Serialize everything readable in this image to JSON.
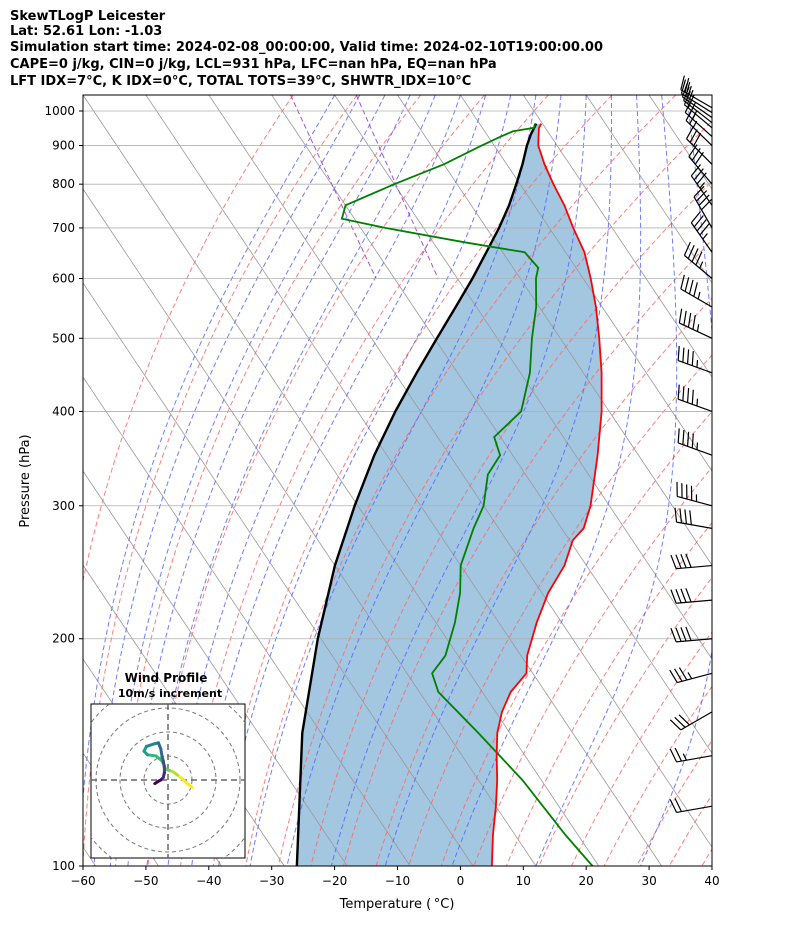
{
  "header": {
    "lines": [
      "SkewTLogP Leicester",
      "Lat: 52.61   Lon: -1.03",
      "Simulation start time: 2024-02-08_00:00:00, Valid time: 2024-02-10T19:00:00.00",
      "CAPE=0 j/kg, CIN=0 j/kg, LCL=931 hPa, LFC=nan hPa, EQ=nan hPa",
      "LFT IDX=7°C, K IDX=0°C, TOTAL TOTS=39°C, SHWTR_IDX=10°C"
    ]
  },
  "chart_data": [
    {
      "type": "line",
      "subtype": "skew-t log-p",
      "xlabel": "Temperature ( °C)",
      "ylabel": "Pressure (hPa)",
      "xlim": [
        -60,
        40
      ],
      "ylim": [
        1050,
        100
      ],
      "yscale": "log",
      "grid": true,
      "x_ticks": [
        -60,
        -50,
        -40,
        -30,
        -20,
        -10,
        0,
        10,
        20,
        30,
        40
      ],
      "x_tick_labels": [
        "−60",
        "−50",
        "−40",
        "−30",
        "−20",
        "−10",
        "0",
        "10",
        "20",
        "30",
        "40"
      ],
      "y_ticks": [
        1000,
        900,
        800,
        700,
        600,
        500,
        400,
        300,
        200,
        100
      ],
      "y_tick_labels": [
        "1000",
        "900",
        "800",
        "700",
        "600",
        "500",
        "400",
        "300",
        "200",
        "100"
      ],
      "colors": {
        "temperature": "#ff0000",
        "dewpoint": "#008000",
        "parcel": "#000000",
        "cape_fill": "#7fb0d6",
        "dry_adiabats": "#ff6666",
        "moist_adiabats": "#5566ff",
        "mixing_ratio": "#9933cc",
        "isotherms": "#999999",
        "wind_barbs": "#000000"
      },
      "series": [
        {
          "role": "temperature",
          "p": [
            962,
            950,
            925,
            900,
            850,
            800,
            750,
            700,
            650,
            600,
            550,
            500,
            450,
            400,
            350,
            300,
            280,
            270,
            250,
            230,
            210,
            190,
            180,
            170,
            160,
            150,
            140,
            130,
            120,
            110,
            100
          ],
          "t": [
            9.8,
            9.0,
            8.0,
            7.0,
            6.0,
            5.3,
            4.8,
            3.8,
            3.0,
            1.2,
            -1.0,
            -3.8,
            -7.1,
            -11.2,
            -16.5,
            -23.0,
            -26.5,
            -29.5,
            -33.5,
            -39.0,
            -44.0,
            -49.0,
            -51.0,
            -55.5,
            -59.0,
            -62.0,
            -64.5,
            -67.0,
            -70.0,
            -73.5,
            -77.0
          ]
        },
        {
          "role": "dewpoint",
          "p": [
            962,
            950,
            940,
            925,
            900,
            850,
            800,
            750,
            720,
            700,
            670,
            650,
            620,
            600,
            550,
            500,
            450,
            400,
            370,
            350,
            330,
            300,
            280,
            250,
            230,
            210,
            190,
            180,
            170,
            150,
            130,
            110,
            100
          ],
          "t": [
            8.8,
            8.2,
            4.5,
            2.0,
            -2.0,
            -10.0,
            -20.0,
            -30.0,
            -32.0,
            -26.0,
            -15.0,
            -6.5,
            -6.0,
            -7.5,
            -10.5,
            -14.5,
            -18.5,
            -24.0,
            -31.0,
            -32.0,
            -36.0,
            -40.0,
            -44.0,
            -50.0,
            -53.0,
            -57.0,
            -62.0,
            -66.0,
            -67.0,
            -65.0,
            -63.0,
            -62.0,
            -61.0
          ]
        },
        {
          "role": "parcel",
          "p": [
            962,
            931,
            900,
            850,
            800,
            750,
            700,
            650,
            600,
            550,
            500,
            450,
            400,
            350,
            300,
            250,
            200,
            150,
            100
          ],
          "t": [
            9.0,
            7.0,
            5.2,
            2.5,
            -0.6,
            -4.0,
            -8.0,
            -12.6,
            -17.6,
            -23.3,
            -29.6,
            -36.5,
            -44.0,
            -52.0,
            -60.5,
            -70.0,
            -80.5,
            -93.0,
            -108.0
          ]
        }
      ],
      "wind_barbs": {
        "p": [
          1010,
          995,
          980,
          965,
          950,
          925,
          900,
          850,
          800,
          750,
          700,
          650,
          600,
          550,
          500,
          450,
          400,
          350,
          300,
          280,
          250,
          225,
          200,
          180,
          160,
          140,
          120
        ],
        "direction_deg": [
          240,
          238,
          235,
          232,
          230,
          228,
          226,
          225,
          220,
          215,
          210,
          215,
          230,
          240,
          245,
          250,
          250,
          250,
          255,
          260,
          275,
          275,
          275,
          285,
          300,
          280,
          280
        ],
        "speed_kt": [
          20,
          20,
          20,
          20,
          20,
          25,
          25,
          30,
          30,
          35,
          40,
          45,
          45,
          45,
          45,
          45,
          45,
          45,
          45,
          40,
          40,
          40,
          40,
          35,
          30,
          25,
          20
        ]
      }
    },
    {
      "type": "line",
      "subtype": "hodograph",
      "title": "Wind Profile",
      "subtitle": "10m/s increment",
      "ring_increment": 10,
      "rings": 3,
      "colormap": "viridis",
      "u": [
        10.0,
        8.0,
        6.0,
        4.0,
        2.0,
        0.5,
        -1.0,
        -1.5,
        -2.5,
        -5.0,
        -8.5,
        -10.0,
        -9.0,
        -6.0,
        -4.0,
        -3.0,
        -2.5,
        -2.0,
        -1.5,
        -1.5,
        -2.0,
        -3.0,
        -4.0,
        -5.5
      ],
      "v": [
        -3.0,
        -1.5,
        0.5,
        2.0,
        3.5,
        4.0,
        4.5,
        6.0,
        8.0,
        10.0,
        10.5,
        12.0,
        14.0,
        15.0,
        15.5,
        13.0,
        10.0,
        8.0,
        5.0,
        3.0,
        1.0,
        0.0,
        -0.5,
        -1.5
      ]
    }
  ]
}
